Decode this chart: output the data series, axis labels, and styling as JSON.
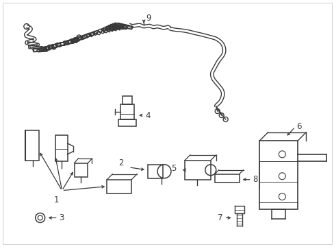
{
  "bg_color": "#ffffff",
  "line_color": "#3a3a3a",
  "figsize": [
    4.89,
    3.6
  ],
  "dpi": 100,
  "harness_main": {
    "x": [
      0.08,
      0.095,
      0.085,
      0.11,
      0.09,
      0.115,
      0.1,
      0.14,
      0.11,
      0.15,
      0.125,
      0.165,
      0.145,
      0.175,
      0.155,
      0.2,
      0.175,
      0.215,
      0.195,
      0.235,
      0.215,
      0.255,
      0.24,
      0.28,
      0.26,
      0.295,
      0.275,
      0.31,
      0.295,
      0.33,
      0.315,
      0.35,
      0.34,
      0.375,
      0.36,
      0.395,
      0.38,
      0.415
    ],
    "y": [
      0.88,
      0.86,
      0.83,
      0.81,
      0.785,
      0.77,
      0.745,
      0.74,
      0.715,
      0.72,
      0.7,
      0.71,
      0.685,
      0.695,
      0.67,
      0.675,
      0.655,
      0.665,
      0.645,
      0.655,
      0.635,
      0.645,
      0.625,
      0.635,
      0.615,
      0.625,
      0.605,
      0.615,
      0.595,
      0.605,
      0.585,
      0.595,
      0.575,
      0.585,
      0.565,
      0.58,
      0.565,
      0.575
    ]
  },
  "label_fontsize": 8.5
}
